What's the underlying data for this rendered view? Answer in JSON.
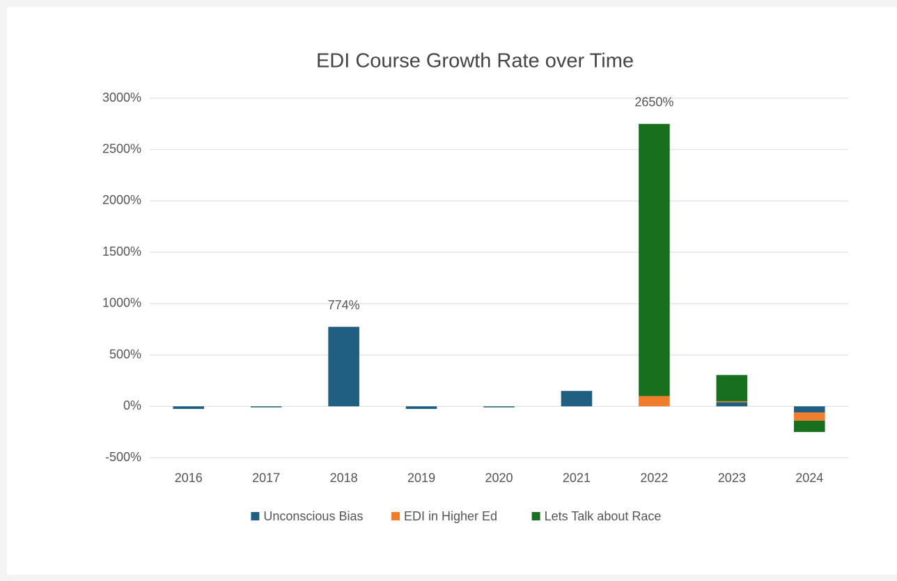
{
  "chart_data": {
    "type": "stacked_bar",
    "title": "EDI Course Growth Rate over Time",
    "categories": [
      "2016",
      "2017",
      "2018",
      "2019",
      "2020",
      "2021",
      "2022",
      "2023",
      "2024"
    ],
    "series": [
      {
        "name": "Unconscious Bias",
        "color": "#1f5f82",
        "values": [
          -25,
          -10,
          774,
          -25,
          -10,
          150,
          0,
          40,
          -60
        ],
        "value_labels": [
          null,
          null,
          "774%",
          null,
          null,
          null,
          null,
          null,
          null
        ]
      },
      {
        "name": "EDI in Higher Ed",
        "color": "#ef7d2e",
        "values": [
          null,
          null,
          null,
          null,
          null,
          null,
          100,
          10,
          -80
        ]
      },
      {
        "name": "Lets Talk about Race",
        "color": "#18701e",
        "values": [
          null,
          null,
          null,
          null,
          null,
          null,
          2650,
          255,
          -110
        ],
        "value_labels": [
          null,
          null,
          null,
          null,
          null,
          null,
          "2650%",
          null,
          null
        ]
      }
    ],
    "ylim": [
      -500,
      3000
    ],
    "yticks": [
      {
        "value": -500,
        "label": "-500%"
      },
      {
        "value": 0,
        "label": "0%"
      },
      {
        "value": 500,
        "label": "500%"
      },
      {
        "value": 1000,
        "label": "1000%"
      },
      {
        "value": 1500,
        "label": "1500%"
      },
      {
        "value": 2000,
        "label": "2000%"
      },
      {
        "value": 2500,
        "label": "2500%"
      },
      {
        "value": 3000,
        "label": "3000%"
      }
    ],
    "grid": true,
    "legend": "bottom"
  }
}
